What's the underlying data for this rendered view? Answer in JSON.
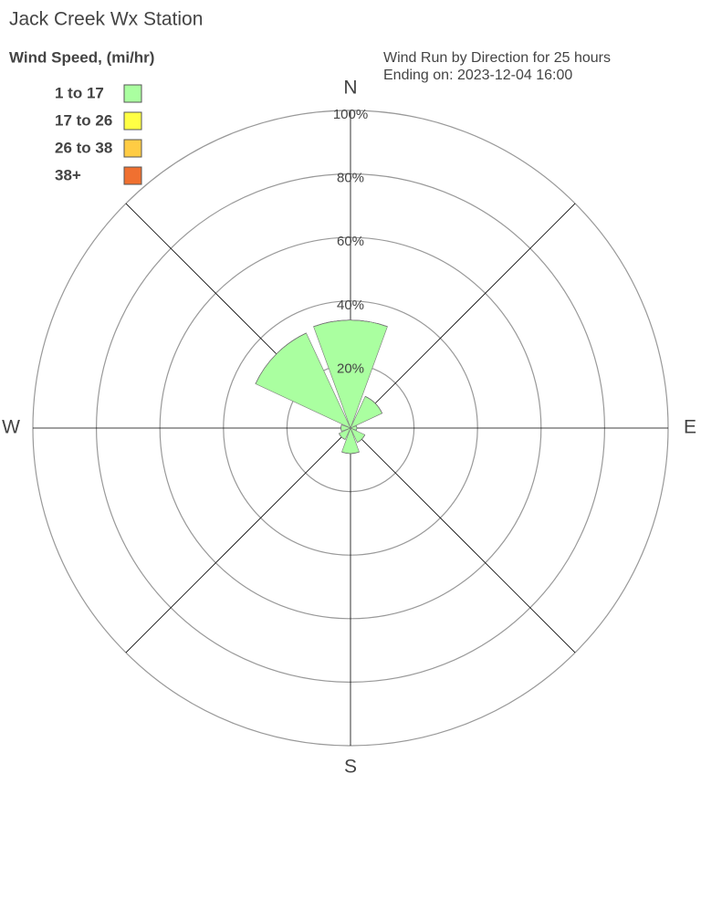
{
  "chart_data": {
    "type": "windrose",
    "title": "Jack Creek Wx Station",
    "subtitle": [
      "Wind Run by Direction for 25 hours",
      "Ending on: 2023-12-04 16:00"
    ],
    "legend_title": "Wind Speed, (mi/hr)",
    "categories": [
      "N",
      null,
      "E",
      null,
      "S",
      null,
      "W",
      null
    ],
    "series": [
      {
        "name": "1 to 17",
        "color": "#aaffa0",
        "values": [
          34,
          11,
          2,
          5,
          8,
          4,
          3,
          33
        ]
      },
      {
        "name": "17 to 26",
        "color": "#ffff44",
        "values": [
          0,
          0,
          0,
          0,
          0,
          0,
          0,
          0
        ]
      },
      {
        "name": "26 to 38",
        "color": "#ffcc44",
        "values": [
          0,
          0,
          0,
          0,
          0,
          0,
          0,
          0
        ]
      },
      {
        "name": "38+",
        "color": "#f07030",
        "values": [
          0,
          0,
          0,
          0,
          0,
          0,
          0,
          0
        ]
      }
    ],
    "rlim": [
      0,
      100
    ],
    "rticks": [
      {
        "value": 20,
        "label": "20%"
      },
      {
        "value": 40,
        "label": "40%"
      },
      {
        "value": 60,
        "label": "60%"
      },
      {
        "value": 80,
        "label": "80%"
      },
      {
        "value": 100,
        "label": "100%"
      }
    ]
  }
}
